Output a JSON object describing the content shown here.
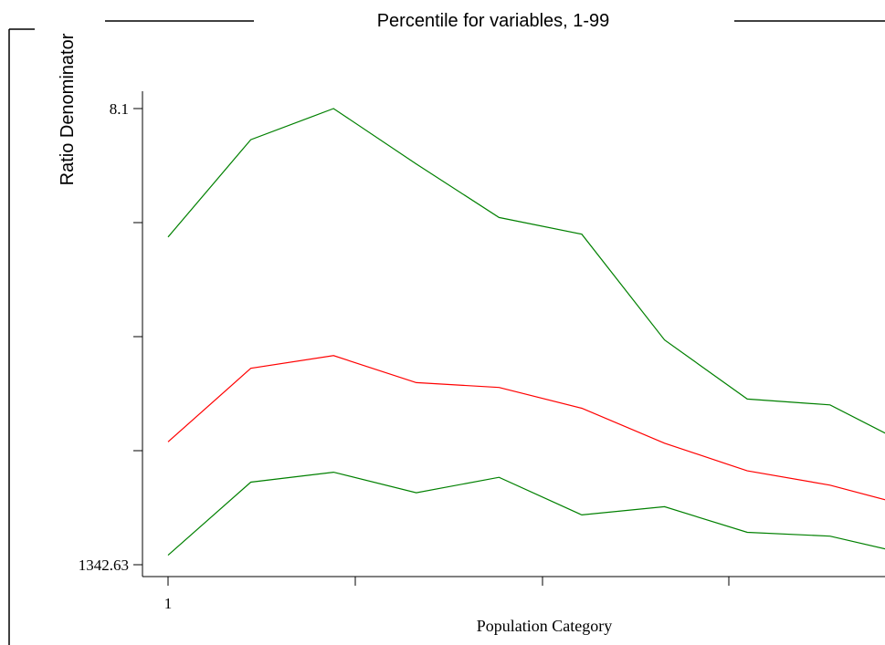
{
  "chart_data": {
    "type": "line",
    "title": "Percentile for variables, 1-99",
    "xlabel": "Population Category",
    "ylabel": "Ratio Denominator",
    "y_axis_reversed": true,
    "y_tick_labels": [
      "8.1",
      "1342.63"
    ],
    "x_tick_labels": [
      "1"
    ],
    "x": [
      1,
      2,
      3,
      4,
      5,
      6,
      7,
      8,
      9,
      10
    ],
    "ylim": [
      8.1,
      1342.63
    ],
    "series": [
      {
        "color": "#008000",
        "values": [
          384.0,
          99.1,
          8.1,
          170.0,
          326.7,
          375.5,
          685.0,
          858.0,
          875.0,
          999.0
        ]
      },
      {
        "color": "#ff0000",
        "values": [
          983.0,
          768.0,
          731.0,
          810.0,
          824.0,
          885.0,
          987.0,
          1068.0,
          1110.0,
          1174.0
        ]
      },
      {
        "color": "#008000",
        "values": [
          1315.0,
          1101.0,
          1072.0,
          1132.0,
          1087.0,
          1197.0,
          1173.0,
          1248.0,
          1259.0,
          1315.0
        ]
      }
    ],
    "grid": false,
    "legend": "none"
  }
}
